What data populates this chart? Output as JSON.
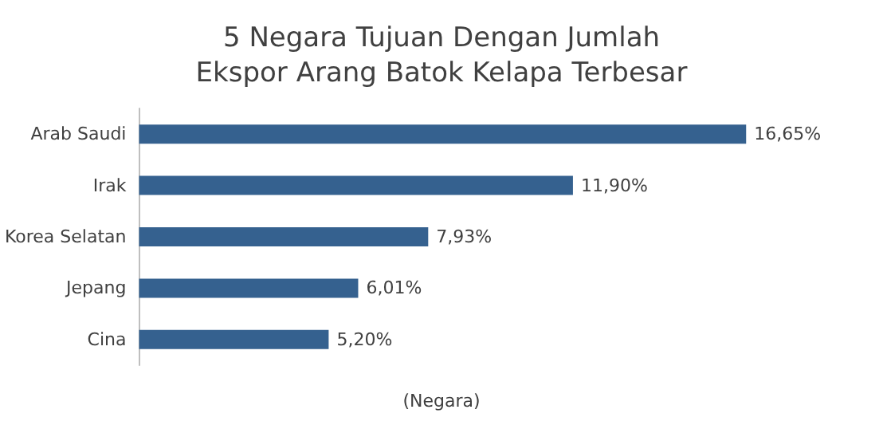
{
  "chart_data": {
    "type": "bar",
    "orientation": "horizontal",
    "title": "5 Negara Tujuan Dengan Jumlah\nEkspor Arang Batok Kelapa Terbesar",
    "xlabel": "(Negara)",
    "categories": [
      "Arab Saudi",
      "Irak",
      "Korea Selatan",
      "Jepang",
      "Cina"
    ],
    "values": [
      16.65,
      11.9,
      7.93,
      6.01,
      5.2
    ],
    "value_labels": [
      "16,65%",
      "11,90%",
      "7,93%",
      "6,01%",
      "5,20%"
    ],
    "color": "#35618f"
  }
}
